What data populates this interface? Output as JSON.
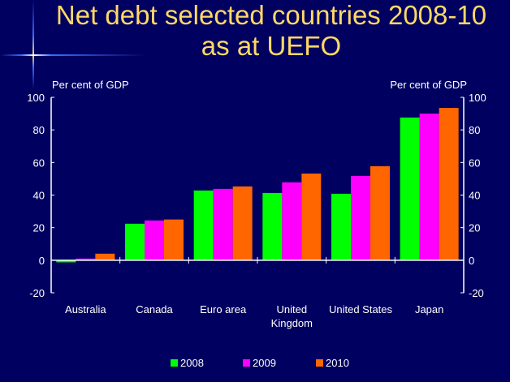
{
  "title_line1": "Net debt selected countries 2008-10",
  "title_line2": "as at UEFO",
  "chart_data": {
    "type": "bar",
    "title": "Net debt selected countries 2008-10 as at UEFO",
    "ylabel_left": "Per cent of GDP",
    "ylabel_right": "Per cent of GDP",
    "ylim": [
      -20,
      100
    ],
    "yticks": [
      -20,
      0,
      20,
      40,
      60,
      80,
      100
    ],
    "categories": [
      "Australia",
      "Canada",
      "Euro area",
      "United Kingdom",
      "United States",
      "Japan"
    ],
    "category_lines": [
      [
        "Australia"
      ],
      [
        "Canada"
      ],
      [
        "Euro area"
      ],
      [
        "United",
        "Kingdom"
      ],
      [
        "United States"
      ],
      [
        "Japan"
      ]
    ],
    "series": [
      {
        "name": "2008",
        "color": "#00FF00",
        "values": [
          -1.3,
          22.4,
          42.8,
          41.3,
          40.8,
          87.6
        ]
      },
      {
        "name": "2009",
        "color": "#FF00FF",
        "values": [
          1.0,
          24.4,
          43.8,
          47.8,
          51.7,
          90.0
        ]
      },
      {
        "name": "2010",
        "color": "#FF6600",
        "values": [
          4.0,
          25.0,
          45.3,
          53.2,
          57.7,
          93.5
        ]
      }
    ],
    "legend": "bottom",
    "grid": false
  }
}
